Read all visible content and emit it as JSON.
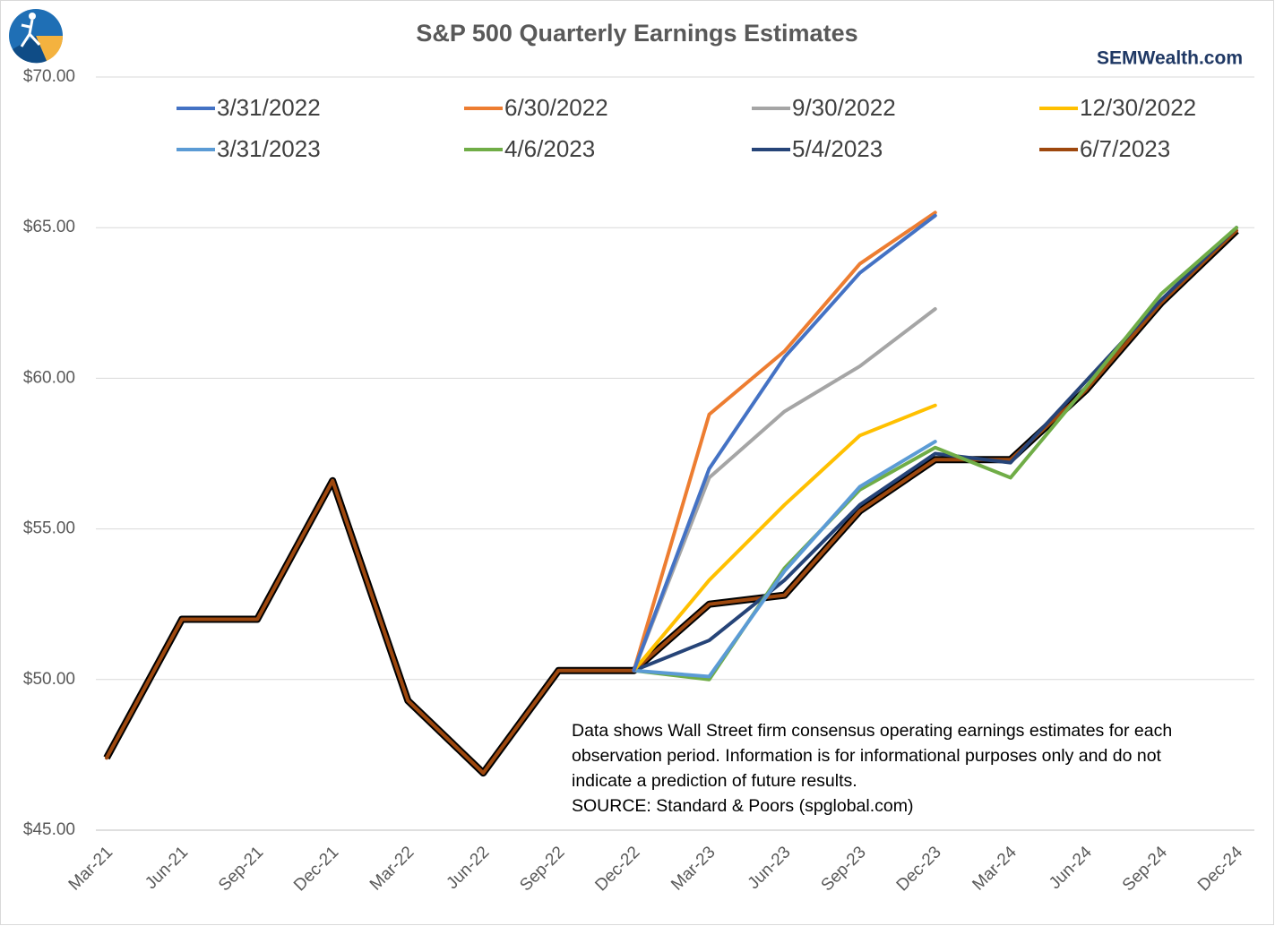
{
  "chart_data": {
    "type": "line",
    "title": "S&P 500 Quarterly Earnings Estimates",
    "watermark": "SEMWealth.com",
    "annotation": [
      "Data shows Wall Street firm consensus operating earnings estimates for each",
      "observation period. Information is for informational purposes only and do not",
      "indicate a prediction of future results.",
      "SOURCE: Standard & Poors (spglobal.com)"
    ],
    "categories": [
      "Mar-21",
      "Jun-21",
      "Sep-21",
      "Dec-21",
      "Mar-22",
      "Jun-22",
      "Sep-22",
      "Dec-22",
      "Mar-23",
      "Jun-23",
      "Sep-23",
      "Dec-23",
      "Mar-24",
      "Jun-24",
      "Sep-24",
      "Dec-24"
    ],
    "series": [
      {
        "name": "3/31/2022",
        "color": "#4472c4",
        "values": [
          null,
          null,
          null,
          null,
          null,
          null,
          null,
          50.3,
          57.0,
          60.7,
          63.5,
          65.4,
          null,
          null,
          null,
          null
        ]
      },
      {
        "name": "6/30/2022",
        "color": "#ed7d31",
        "values": [
          null,
          null,
          null,
          null,
          null,
          null,
          null,
          50.3,
          58.8,
          60.9,
          63.8,
          65.5,
          null,
          null,
          null,
          null
        ]
      },
      {
        "name": "9/30/2022",
        "color": "#a5a5a5",
        "values": [
          null,
          null,
          null,
          null,
          null,
          null,
          null,
          50.3,
          56.7,
          58.9,
          60.4,
          62.3,
          null,
          null,
          null,
          null
        ]
      },
      {
        "name": "12/30/2022",
        "color": "#ffc000",
        "values": [
          null,
          null,
          null,
          null,
          null,
          null,
          null,
          50.3,
          53.3,
          55.8,
          58.1,
          59.1,
          null,
          null,
          null,
          null
        ]
      },
      {
        "name": "3/31/2023",
        "color": "#5b9bd5",
        "values": [
          null,
          null,
          null,
          null,
          null,
          null,
          null,
          50.3,
          50.1,
          53.6,
          56.4,
          57.9,
          null,
          null,
          null,
          null
        ]
      },
      {
        "name": "4/6/2023",
        "color": "#70ad47",
        "values": [
          null,
          null,
          null,
          null,
          null,
          null,
          null,
          50.3,
          50.0,
          53.7,
          56.3,
          57.7,
          56.7,
          59.7,
          62.8,
          65.0
        ]
      },
      {
        "name": "5/4/2023",
        "color": "#264478",
        "values": [
          null,
          null,
          null,
          null,
          null,
          null,
          null,
          50.3,
          51.3,
          53.3,
          55.8,
          57.5,
          57.2,
          59.9,
          62.6,
          65.0
        ]
      },
      {
        "name": "6/7/2023",
        "color": "#9e480e",
        "outline": "#000000",
        "values": [
          47.4,
          52.0,
          52.0,
          56.6,
          49.3,
          46.9,
          50.3,
          50.3,
          52.5,
          52.8,
          55.6,
          57.3,
          57.3,
          59.6,
          62.5,
          64.9
        ]
      }
    ],
    "ylim": [
      45,
      70
    ],
    "yticks": [
      {
        "value": 45,
        "label": "$45.00"
      },
      {
        "value": 50,
        "label": "$50.00"
      },
      {
        "value": 55,
        "label": "$55.00"
      },
      {
        "value": 60,
        "label": "$60.00"
      },
      {
        "value": 65,
        "label": "$65.00"
      },
      {
        "value": 70,
        "label": "$70.00"
      }
    ],
    "grid": true
  }
}
